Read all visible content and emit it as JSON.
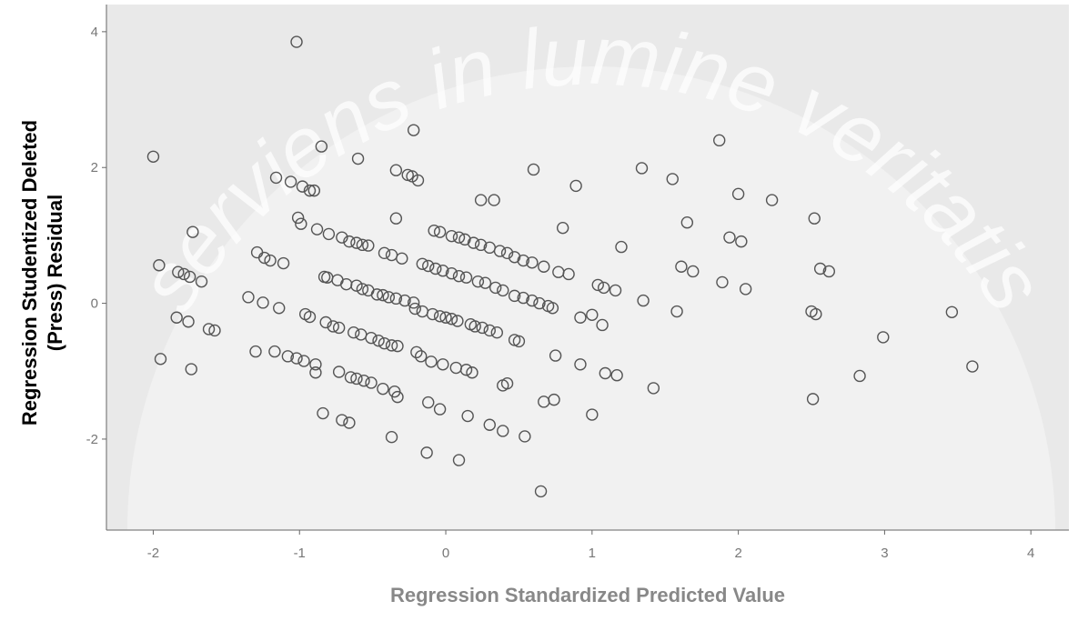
{
  "chart_data": {
    "type": "scatter",
    "xlabel": "Regression Standardized Predicted Value",
    "ylabel": [
      "Regression Studentized Deleted",
      "(Press) Residual"
    ],
    "watermark": "serviens in lumine veritatis",
    "xlim": [
      -2.32,
      4.26
    ],
    "ylim": [
      -3.34,
      4.4
    ],
    "xticks": [
      -2,
      -1,
      0,
      1,
      2,
      3,
      4
    ],
    "yticks": [
      -2,
      0,
      2,
      4
    ],
    "color": "#555555",
    "x": [
      -2.0,
      -1.96,
      -1.95,
      -1.83,
      -1.79,
      -1.75,
      -1.67,
      -1.73,
      -1.84,
      -1.76,
      -1.74,
      -1.62,
      -1.58,
      -1.35,
      -1.29,
      -1.24,
      -1.2,
      -1.11,
      -1.25,
      -1.14,
      -1.3,
      -1.17,
      -1.08,
      -1.02,
      -0.97,
      -0.89,
      -0.89,
      -1.02,
      -1.16,
      -1.06,
      -0.98,
      -0.93,
      -0.9,
      -1.01,
      -0.99,
      -0.85,
      -0.6,
      -0.22,
      -0.88,
      -0.8,
      -0.71,
      -0.66,
      -0.61,
      -0.57,
      -0.53,
      -0.83,
      -0.81,
      -0.74,
      -0.68,
      -0.61,
      -0.57,
      -0.53,
      -0.47,
      -0.43,
      -0.39,
      -0.34,
      -0.28,
      -0.22,
      -0.96,
      -0.93,
      -0.82,
      -0.77,
      -0.73,
      -0.63,
      -0.58,
      -0.51,
      -0.46,
      -0.42,
      -0.37,
      -0.33,
      -0.73,
      -0.65,
      -0.61,
      -0.56,
      -0.51,
      -0.43,
      -0.35,
      -0.33,
      -0.84,
      -0.71,
      -0.66,
      -0.37,
      -0.42,
      -0.37,
      -0.3,
      -0.34,
      -0.34,
      -0.26,
      -0.23,
      -0.19,
      -0.08,
      -0.04,
      0.04,
      0.09,
      0.13,
      0.19,
      0.24,
      0.3,
      0.37,
      0.42,
      0.47,
      0.53,
      0.59,
      -0.16,
      -0.12,
      -0.07,
      -0.02,
      0.04,
      0.09,
      0.14,
      0.22,
      0.27,
      0.34,
      0.39,
      0.47,
      0.53,
      0.59,
      0.64,
      0.7,
      0.73,
      -0.21,
      -0.16,
      -0.09,
      -0.04,
      0.0,
      0.04,
      0.08,
      0.17,
      0.2,
      0.25,
      0.3,
      0.35,
      0.47,
      0.5,
      -0.2,
      -0.17,
      -0.1,
      -0.02,
      0.07,
      0.14,
      0.18,
      0.39,
      0.42,
      -0.12,
      -0.04,
      0.15,
      0.3,
      0.39,
      0.54,
      -0.13,
      0.09,
      0.65,
      0.24,
      0.33,
      0.6,
      0.89,
      0.8,
      0.67,
      0.77,
      0.84,
      1.0,
      0.92,
      0.75,
      0.92,
      0.74,
      0.67,
      1.0,
      1.04,
      1.08,
      1.16,
      1.2,
      1.07,
      1.09,
      1.17,
      1.35,
      1.42,
      1.34,
      1.55,
      1.65,
      1.61,
      1.69,
      1.58,
      1.87,
      2.0,
      2.23,
      1.94,
      2.02,
      1.89,
      2.05,
      2.52,
      2.56,
      2.62,
      2.5,
      2.53,
      2.51,
      2.99,
      2.83,
      3.46,
      3.6
    ],
    "y": [
      2.16,
      0.56,
      -0.82,
      0.46,
      0.43,
      0.39,
      0.32,
      1.05,
      -0.21,
      -0.27,
      -0.97,
      -0.38,
      -0.4,
      0.09,
      0.75,
      0.67,
      0.63,
      0.59,
      0.01,
      -0.07,
      -0.71,
      -0.71,
      -0.78,
      -0.81,
      -0.85,
      -0.9,
      -1.02,
      3.85,
      1.85,
      1.79,
      1.72,
      1.66,
      1.66,
      1.26,
      1.17,
      2.31,
      2.13,
      2.55,
      1.09,
      1.02,
      0.97,
      0.91,
      0.89,
      0.86,
      0.85,
      0.39,
      0.38,
      0.34,
      0.28,
      0.26,
      0.21,
      0.19,
      0.13,
      0.12,
      0.09,
      0.07,
      0.04,
      0.01,
      -0.16,
      -0.2,
      -0.28,
      -0.34,
      -0.36,
      -0.43,
      -0.46,
      -0.51,
      -0.55,
      -0.59,
      -0.62,
      -0.63,
      -1.01,
      -1.09,
      -1.11,
      -1.14,
      -1.17,
      -1.26,
      -1.3,
      -1.38,
      -1.62,
      -1.72,
      -1.76,
      -1.97,
      0.74,
      0.71,
      0.66,
      1.25,
      1.96,
      1.89,
      1.87,
      1.81,
      1.07,
      1.05,
      0.99,
      0.97,
      0.94,
      0.89,
      0.86,
      0.82,
      0.77,
      0.74,
      0.68,
      0.63,
      0.6,
      0.58,
      0.55,
      0.51,
      0.48,
      0.44,
      0.4,
      0.38,
      0.32,
      0.3,
      0.23,
      0.19,
      0.11,
      0.08,
      0.04,
      0.0,
      -0.04,
      -0.07,
      -0.08,
      -0.12,
      -0.16,
      -0.19,
      -0.21,
      -0.23,
      -0.26,
      -0.31,
      -0.34,
      -0.36,
      -0.4,
      -0.43,
      -0.54,
      -0.56,
      -0.72,
      -0.78,
      -0.86,
      -0.9,
      -0.95,
      -0.98,
      -1.02,
      -1.21,
      -1.18,
      -1.46,
      -1.56,
      -1.66,
      -1.79,
      -1.88,
      -1.96,
      -2.2,
      -2.31,
      -2.77,
      1.52,
      1.52,
      1.97,
      1.73,
      1.11,
      0.54,
      0.46,
      0.43,
      -0.17,
      -0.21,
      -0.77,
      -0.9,
      -1.42,
      -1.45,
      -1.64,
      0.27,
      0.23,
      0.19,
      0.83,
      -0.32,
      -1.03,
      -1.06,
      0.04,
      -1.25,
      1.99,
      1.83,
      1.19,
      0.54,
      0.47,
      -0.12,
      2.4,
      1.61,
      1.52,
      0.97,
      0.91,
      0.31,
      0.21,
      1.25,
      0.51,
      0.47,
      -0.12,
      -0.16,
      -1.41,
      -0.5,
      -1.07,
      -0.13,
      -0.93
    ]
  }
}
